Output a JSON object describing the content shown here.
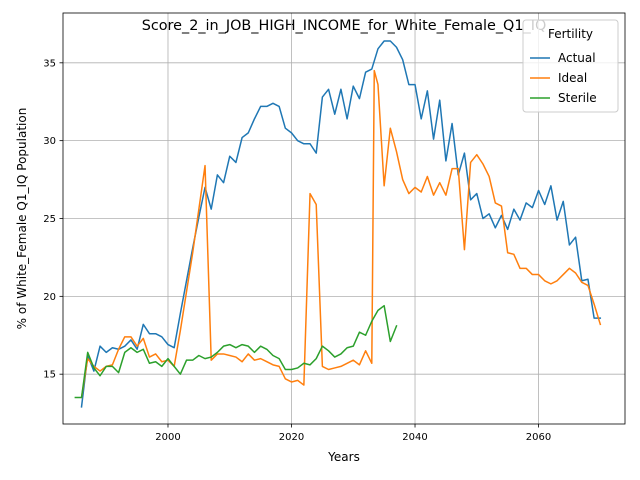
{
  "chart_data": {
    "type": "line",
    "title": "Score_2_in_JOB_HIGH_INCOME_for_White_Female_Q1_IQ",
    "xlabel": "Years",
    "ylabel": "% of White_Female Q1_IQ Population",
    "xlim": [
      1983,
      2074
    ],
    "ylim": [
      11.8,
      38.2
    ],
    "xticks": [
      2000,
      2020,
      2040,
      2060
    ],
    "yticks": [
      15,
      20,
      25,
      30,
      35
    ],
    "grid": true,
    "legend": {
      "title": "Fertility",
      "placement": "top-right"
    },
    "series": [
      {
        "name": "Actual",
        "color": "#1f77b4",
        "points": [
          [
            1986,
            12.9
          ],
          [
            1987,
            16.2
          ],
          [
            1988,
            15.2
          ],
          [
            1989,
            16.8
          ],
          [
            1990,
            16.4
          ],
          [
            1991,
            16.7
          ],
          [
            1992,
            16.6
          ],
          [
            1993,
            16.8
          ],
          [
            1994,
            17.2
          ],
          [
            1995,
            16.6
          ],
          [
            1996,
            18.2
          ],
          [
            1997,
            17.6
          ],
          [
            1998,
            17.6
          ],
          [
            1999,
            17.4
          ],
          [
            2000,
            16.9
          ],
          [
            2001,
            16.7
          ],
          [
            2002,
            18.9
          ],
          [
            2003,
            21.0
          ],
          [
            2004,
            23.1
          ],
          [
            2005,
            25.1
          ],
          [
            2006,
            27.0
          ],
          [
            2007,
            25.6
          ],
          [
            2008,
            27.8
          ],
          [
            2009,
            27.3
          ],
          [
            2010,
            29.0
          ],
          [
            2011,
            28.6
          ],
          [
            2012,
            30.2
          ],
          [
            2013,
            30.5
          ],
          [
            2014,
            31.4
          ],
          [
            2015,
            32.2
          ],
          [
            2016,
            32.2
          ],
          [
            2017,
            32.4
          ],
          [
            2018,
            32.2
          ],
          [
            2019,
            30.8
          ],
          [
            2020,
            30.5
          ],
          [
            2021,
            30.0
          ],
          [
            2022,
            29.8
          ],
          [
            2023,
            29.8
          ],
          [
            2024,
            29.2
          ],
          [
            2025,
            32.8
          ],
          [
            2026,
            33.3
          ],
          [
            2027,
            31.7
          ],
          [
            2028,
            33.3
          ],
          [
            2029,
            31.4
          ],
          [
            2030,
            33.5
          ],
          [
            2031,
            32.7
          ],
          [
            2032,
            34.4
          ],
          [
            2033,
            34.6
          ],
          [
            2034,
            35.9
          ],
          [
            2035,
            36.4
          ],
          [
            2036,
            36.4
          ],
          [
            2037,
            36.0
          ],
          [
            2038,
            35.2
          ],
          [
            2039,
            33.6
          ],
          [
            2040,
            33.6
          ],
          [
            2041,
            31.4
          ],
          [
            2042,
            33.2
          ],
          [
            2043,
            30.1
          ],
          [
            2044,
            32.6
          ],
          [
            2045,
            28.7
          ],
          [
            2046,
            31.1
          ],
          [
            2047,
            27.8
          ],
          [
            2048,
            29.2
          ],
          [
            2049,
            26.2
          ],
          [
            2050,
            26.6
          ],
          [
            2051,
            25.0
          ],
          [
            2052,
            25.3
          ],
          [
            2053,
            24.4
          ],
          [
            2054,
            25.2
          ],
          [
            2055,
            24.3
          ],
          [
            2056,
            25.6
          ],
          [
            2057,
            24.9
          ],
          [
            2058,
            26.0
          ],
          [
            2059,
            25.7
          ],
          [
            2060,
            26.8
          ],
          [
            2061,
            25.9
          ],
          [
            2062,
            27.1
          ],
          [
            2063,
            24.9
          ],
          [
            2064,
            26.1
          ],
          [
            2065,
            23.3
          ],
          [
            2066,
            23.8
          ],
          [
            2067,
            21.0
          ],
          [
            2068,
            21.1
          ],
          [
            2069,
            18.6
          ],
          [
            2070,
            18.6
          ]
        ]
      },
      {
        "name": "Ideal",
        "color": "#ff7f0e",
        "points": [
          [
            1986,
            13.5
          ],
          [
            1987,
            16.0
          ],
          [
            1988,
            15.5
          ],
          [
            1989,
            15.2
          ],
          [
            1990,
            15.5
          ],
          [
            1991,
            15.6
          ],
          [
            1992,
            16.6
          ],
          [
            1993,
            17.4
          ],
          [
            1994,
            17.4
          ],
          [
            1995,
            16.8
          ],
          [
            1996,
            17.3
          ],
          [
            1997,
            16.1
          ],
          [
            1998,
            16.3
          ],
          [
            1999,
            15.8
          ],
          [
            2000,
            15.9
          ],
          [
            2001,
            15.5
          ],
          [
            2002,
            17.8
          ],
          [
            2003,
            20.3
          ],
          [
            2004,
            22.8
          ],
          [
            2005,
            25.6
          ],
          [
            2006,
            28.4
          ],
          [
            2007,
            15.9
          ],
          [
            2008,
            16.3
          ],
          [
            2009,
            16.3
          ],
          [
            2010,
            16.2
          ],
          [
            2011,
            16.1
          ],
          [
            2012,
            15.8
          ],
          [
            2013,
            16.3
          ],
          [
            2014,
            15.9
          ],
          [
            2015,
            16.0
          ],
          [
            2016,
            15.8
          ],
          [
            2017,
            15.6
          ],
          [
            2018,
            15.5
          ],
          [
            2019,
            14.7
          ],
          [
            2020,
            14.5
          ],
          [
            2021,
            14.6
          ],
          [
            2022,
            14.3
          ],
          [
            2023,
            26.6
          ],
          [
            2024,
            25.9
          ],
          [
            2025,
            15.5
          ],
          [
            2026,
            15.3
          ],
          [
            2027,
            15.4
          ],
          [
            2028,
            15.5
          ],
          [
            2029,
            15.7
          ],
          [
            2030,
            15.9
          ],
          [
            2031,
            15.6
          ],
          [
            2032,
            16.5
          ],
          [
            2033,
            15.7
          ],
          [
            2033.4,
            34.5
          ],
          [
            2034,
            33.6
          ],
          [
            2035,
            27.1
          ],
          [
            2036,
            30.8
          ],
          [
            2037,
            29.3
          ],
          [
            2038,
            27.5
          ],
          [
            2039,
            26.6
          ],
          [
            2040,
            27.0
          ],
          [
            2041,
            26.7
          ],
          [
            2042,
            27.7
          ],
          [
            2043,
            26.5
          ],
          [
            2044,
            27.3
          ],
          [
            2045,
            26.5
          ],
          [
            2046,
            28.2
          ],
          [
            2047,
            28.2
          ],
          [
            2048,
            23.0
          ],
          [
            2049,
            28.6
          ],
          [
            2050,
            29.1
          ],
          [
            2051,
            28.5
          ],
          [
            2052,
            27.7
          ],
          [
            2053,
            26.0
          ],
          [
            2054,
            25.8
          ],
          [
            2055,
            22.8
          ],
          [
            2056,
            22.7
          ],
          [
            2057,
            21.8
          ],
          [
            2058,
            21.8
          ],
          [
            2059,
            21.4
          ],
          [
            2060,
            21.4
          ],
          [
            2061,
            21.0
          ],
          [
            2062,
            20.8
          ],
          [
            2063,
            21.0
          ],
          [
            2064,
            21.4
          ],
          [
            2065,
            21.8
          ],
          [
            2066,
            21.5
          ],
          [
            2067,
            20.9
          ],
          [
            2068,
            20.7
          ],
          [
            2069,
            19.5
          ],
          [
            2070,
            18.2
          ]
        ]
      },
      {
        "name": "Sterile",
        "color": "#2ca02c",
        "points": [
          [
            1985,
            13.5
          ],
          [
            1986,
            13.5
          ],
          [
            1987,
            16.4
          ],
          [
            1988,
            15.4
          ],
          [
            1989,
            14.9
          ],
          [
            1990,
            15.5
          ],
          [
            1991,
            15.5
          ],
          [
            1992,
            15.1
          ],
          [
            1993,
            16.4
          ],
          [
            1994,
            16.7
          ],
          [
            1995,
            16.4
          ],
          [
            1996,
            16.6
          ],
          [
            1997,
            15.7
          ],
          [
            1998,
            15.8
          ],
          [
            1999,
            15.5
          ],
          [
            2000,
            16.0
          ],
          [
            2001,
            15.5
          ],
          [
            2002,
            15.0
          ],
          [
            2003,
            15.9
          ],
          [
            2004,
            15.9
          ],
          [
            2005,
            16.2
          ],
          [
            2006,
            16.0
          ],
          [
            2007,
            16.1
          ],
          [
            2008,
            16.4
          ],
          [
            2009,
            16.8
          ],
          [
            2010,
            16.9
          ],
          [
            2011,
            16.7
          ],
          [
            2012,
            16.9
          ],
          [
            2013,
            16.8
          ],
          [
            2014,
            16.4
          ],
          [
            2015,
            16.8
          ],
          [
            2016,
            16.6
          ],
          [
            2017,
            16.2
          ],
          [
            2018,
            16.0
          ],
          [
            2019,
            15.3
          ],
          [
            2020,
            15.3
          ],
          [
            2021,
            15.4
          ],
          [
            2022,
            15.7
          ],
          [
            2023,
            15.6
          ],
          [
            2024,
            16.0
          ],
          [
            2025,
            16.8
          ],
          [
            2026,
            16.5
          ],
          [
            2027,
            16.1
          ],
          [
            2028,
            16.3
          ],
          [
            2029,
            16.7
          ],
          [
            2030,
            16.8
          ],
          [
            2031,
            17.7
          ],
          [
            2032,
            17.5
          ],
          [
            2033,
            18.4
          ],
          [
            2034,
            19.1
          ],
          [
            2035,
            19.4
          ],
          [
            2036,
            17.1
          ],
          [
            2037,
            18.1
          ]
        ]
      }
    ]
  }
}
